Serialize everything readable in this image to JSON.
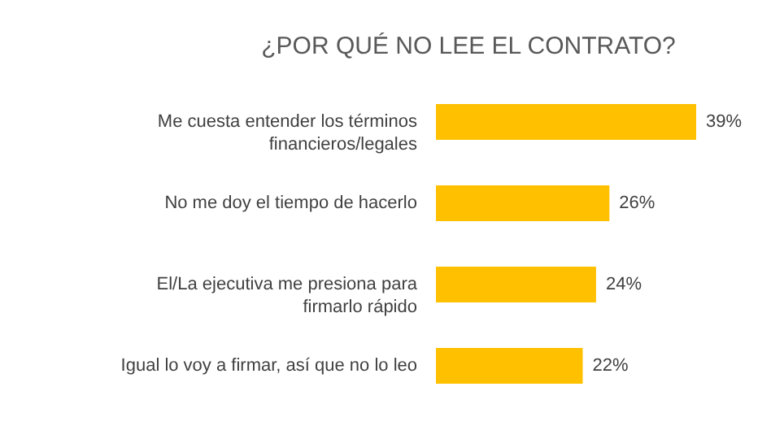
{
  "chart_data": {
    "type": "bar",
    "orientation": "horizontal",
    "title": "¿POR QUÉ NO LEE EL CONTRATO?",
    "categories": [
      "Me cuesta entender los términos financieros/legales",
      "No me doy el tiempo de hacerlo",
      "El/La ejecutiva me presiona para firmarlo rápido",
      "Igual lo voy a firmar, así que no lo leo"
    ],
    "values": [
      39,
      26,
      24,
      22
    ],
    "value_labels": [
      "39%",
      "26%",
      "24%",
      "22%"
    ],
    "color": "#ffc000"
  }
}
